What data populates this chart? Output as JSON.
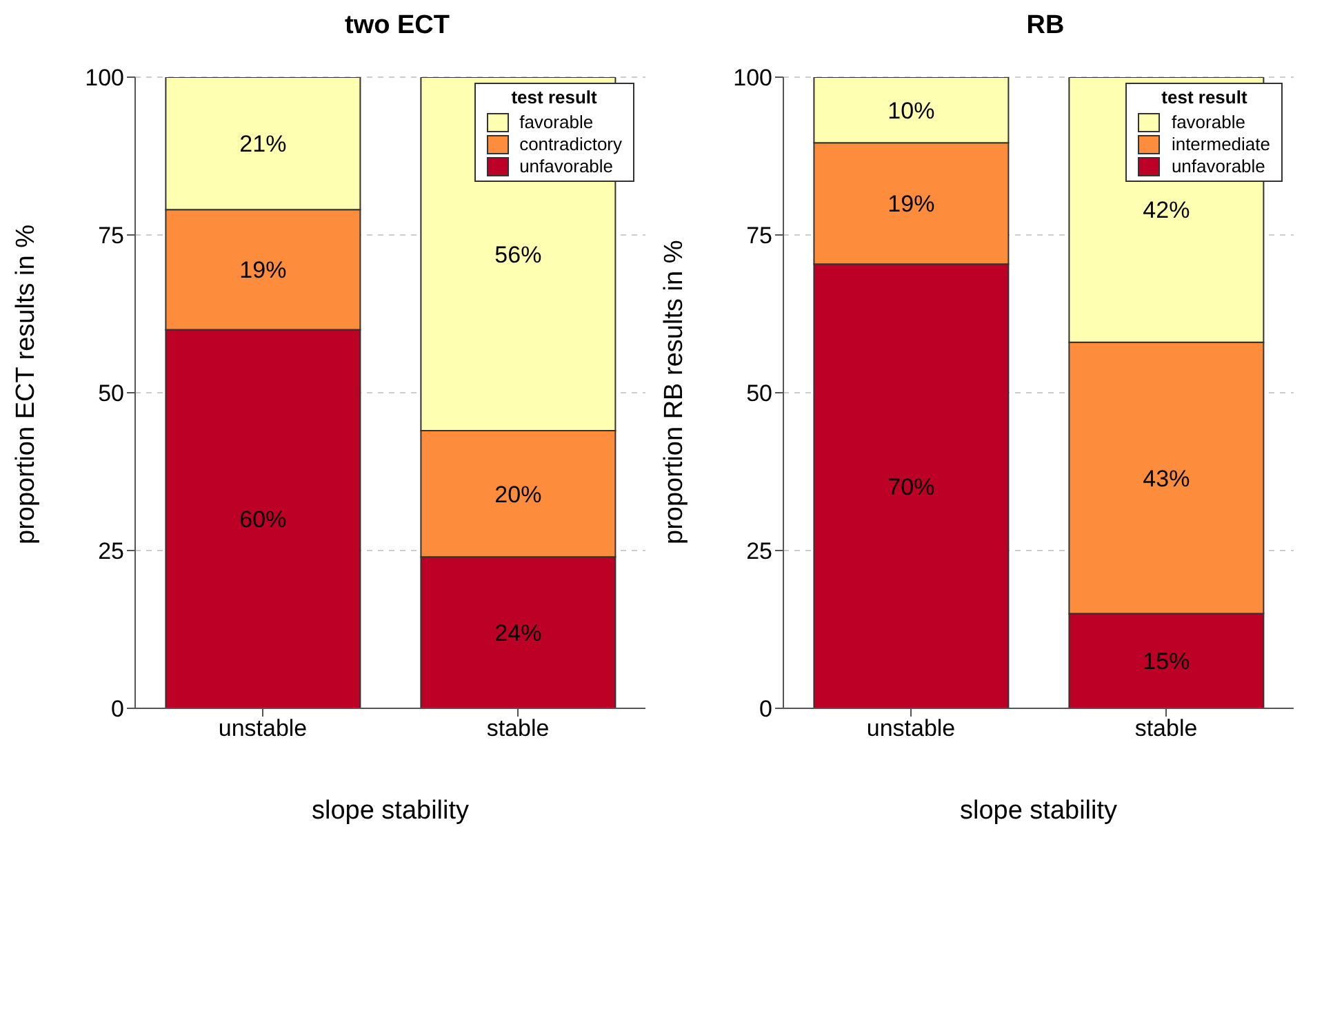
{
  "chart_data": [
    {
      "type": "bar",
      "title": "two ECT",
      "xlabel": "slope stability",
      "ylabel": "proportion ECT results in %",
      "categories": [
        "unstable",
        "stable"
      ],
      "stacked": true,
      "legend_title": "test result",
      "legend": "top right",
      "grid": "y",
      "ylim": [
        0,
        100
      ],
      "yticks": [
        0,
        25,
        50,
        75,
        100
      ],
      "series": [
        {
          "name": "unfavorable",
          "color": "#bd0026",
          "values": [
            60,
            24
          ],
          "value_labels": [
            "60%",
            "24%"
          ]
        },
        {
          "name": "contradictory",
          "color": "#fd8d3c",
          "values": [
            19,
            20
          ],
          "value_labels": [
            "19%",
            "20%"
          ]
        },
        {
          "name": "favorable",
          "color": "#ffffb2",
          "values": [
            21,
            56
          ],
          "value_labels": [
            "21%",
            "56%"
          ]
        }
      ]
    },
    {
      "type": "bar",
      "title": "RB",
      "xlabel": "slope stability",
      "ylabel": "proportion RB results in %",
      "categories": [
        "unstable",
        "stable"
      ],
      "stacked": true,
      "legend_title": "test result",
      "legend": "top right",
      "grid": "y",
      "ylim": [
        0,
        100
      ],
      "yticks": [
        0,
        25,
        50,
        75,
        100
      ],
      "series": [
        {
          "name": "unfavorable",
          "color": "#bd0026",
          "values": [
            70.4,
            15
          ],
          "value_labels": [
            "70%",
            "15%"
          ]
        },
        {
          "name": "intermediate",
          "color": "#fd8d3c",
          "values": [
            19.2,
            43
          ],
          "value_labels": [
            "19%",
            "43%"
          ]
        },
        {
          "name": "favorable",
          "color": "#ffffb2",
          "values": [
            10.4,
            42
          ],
          "value_labels": [
            "10%",
            "42%"
          ]
        }
      ]
    }
  ]
}
